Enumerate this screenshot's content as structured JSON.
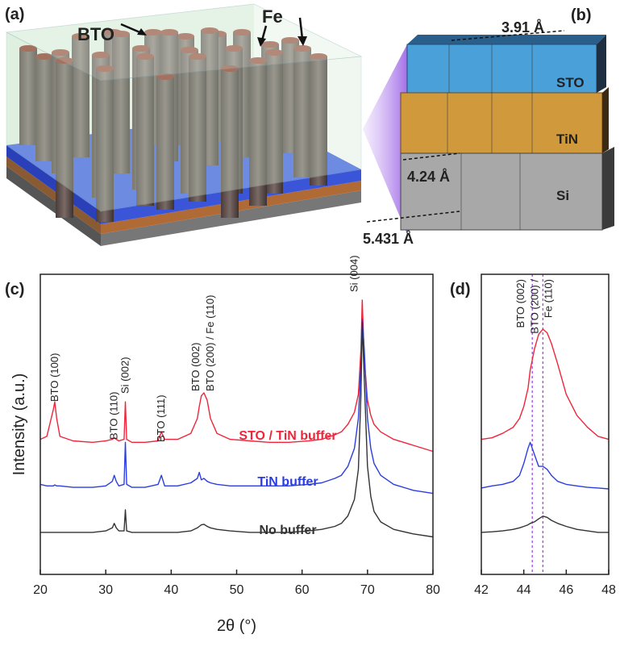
{
  "schematic": {
    "panel_a": "(a)",
    "bto_label": "BTO",
    "fe_label": "Fe",
    "panel_b": "(b)",
    "sto_spacing": "3.91 Å",
    "sto_layer": "STO",
    "tin_layer": "TiN",
    "tin_spacing": "4.24 Å",
    "si_layer": "Si",
    "si_spacing": "5.431 Å",
    "panel_c": "(c)",
    "panel_d": "(d)"
  },
  "chart_data": [
    {
      "type": "line",
      "xlabel": "2θ (°)",
      "ylabel": "Intensity (a.u.)",
      "xlim": [
        20,
        80
      ],
      "xticks": [
        20,
        30,
        40,
        50,
        60,
        70,
        80
      ],
      "ylim": [
        0,
        100
      ],
      "x": [
        20,
        21,
        22,
        22.2,
        22.5,
        23,
        25,
        28,
        30,
        31,
        31.3,
        31.6,
        32,
        32.8,
        33,
        33.2,
        34,
        36,
        38,
        38.5,
        39,
        41,
        43,
        44,
        44.3,
        44.6,
        45,
        45.5,
        46,
        47,
        49,
        52,
        55,
        58,
        61,
        63,
        65,
        66,
        67,
        68,
        68.6,
        69,
        69.2,
        69.5,
        70,
        70.5,
        71,
        72,
        74,
        77,
        80
      ],
      "series": [
        {
          "name": "STO / TiN buffer",
          "color": "#f0253a",
          "values": [
            45,
            46,
            55,
            57.5,
            52,
            46,
            44.5,
            44,
            44.5,
            45,
            45.5,
            45,
            44.5,
            45,
            57.5,
            45,
            44,
            44,
            44.5,
            47.5,
            45,
            45,
            47,
            52,
            56,
            59.5,
            60.5,
            58,
            52,
            47,
            45,
            44.5,
            44,
            44,
            44.5,
            45,
            46.5,
            47.5,
            50,
            54,
            60,
            75,
            91.4,
            72,
            58,
            53,
            50,
            47.5,
            45,
            43,
            41
          ]
        },
        {
          "name": "TiN buffer",
          "color": "#2b3de0",
          "values": [
            30,
            29.5,
            29.5,
            29.8,
            29.5,
            29.5,
            29,
            29,
            29.5,
            31,
            33,
            31,
            29.5,
            30,
            44,
            30,
            29,
            29,
            30,
            33,
            29.5,
            29.5,
            30.5,
            32,
            34,
            31.5,
            32,
            31,
            30.5,
            30,
            29.5,
            29.5,
            29.5,
            29.5,
            30,
            30.5,
            32,
            33,
            36,
            42,
            52,
            70,
            85,
            75,
            52,
            42,
            37,
            33,
            30,
            28,
            27
          ]
        },
        {
          "name": "No buffer",
          "color": "#333333",
          "values": [
            14,
            14,
            14,
            14,
            14,
            14,
            14,
            14,
            14.5,
            15.5,
            17,
            15.5,
            14.5,
            14.5,
            21.5,
            14.5,
            14,
            14,
            14,
            14,
            14,
            14,
            14.5,
            15.5,
            16,
            16.5,
            16.7,
            16,
            15.5,
            15,
            14.5,
            14,
            14,
            14,
            14.5,
            15,
            16,
            17,
            19.5,
            25,
            35,
            60,
            84,
            65,
            36,
            26,
            21,
            17.5,
            15,
            13.5,
            12.5
          ]
        }
      ],
      "annotations": [
        {
          "x": 22.2,
          "text": "BTO (100)"
        },
        {
          "x": 31.3,
          "text": "BTO (110)"
        },
        {
          "x": 33,
          "text": "Si (002)"
        },
        {
          "x": 38.5,
          "text": "BTO (111)"
        },
        {
          "x": 44.3,
          "text": "BTO (002)"
        },
        {
          "x": 45,
          "text": "BTO (200) / Fe (110)"
        },
        {
          "x": 69.2,
          "text": "Si (004)"
        }
      ]
    },
    {
      "type": "line",
      "xlim": [
        42,
        48
      ],
      "xticks": [
        42,
        44,
        46,
        48
      ],
      "ylim": [
        0,
        100
      ],
      "x": [
        42,
        42.5,
        43,
        43.5,
        43.8,
        44,
        44.2,
        44.3,
        44.5,
        44.7,
        44.9,
        45.1,
        45.3,
        45.6,
        46,
        46.5,
        47,
        47.5,
        48
      ],
      "series": [
        {
          "name": "STO / TiN buffer",
          "color": "#f0253a",
          "values": [
            45,
            45.5,
            47,
            49,
            52,
            56,
            62,
            68,
            75,
            80,
            81.7,
            80.5,
            77,
            70,
            60,
            53,
            49,
            46,
            45
          ]
        },
        {
          "name": "TiN buffer",
          "color": "#2b3de0",
          "values": [
            28.8,
            29.5,
            30,
            31,
            33,
            37,
            42,
            44,
            40,
            36,
            36,
            35,
            33,
            31,
            30,
            29.5,
            29,
            28.8,
            28.5
          ]
        },
        {
          "name": "No buffer",
          "color": "#333333",
          "values": [
            14,
            14.2,
            14.5,
            15,
            15.5,
            16,
            16.5,
            17,
            17.5,
            18.5,
            19.4,
            19,
            18,
            17,
            16,
            15,
            14.5,
            14,
            14
          ]
        }
      ],
      "marker_color": "#9b4fd8",
      "vlines": [
        {
          "x": 44.4,
          "label": [
            "BTO (002)"
          ]
        },
        {
          "x": 44.9,
          "label": [
            "BTO (200) /",
            "Fe (110)"
          ]
        }
      ]
    }
  ]
}
